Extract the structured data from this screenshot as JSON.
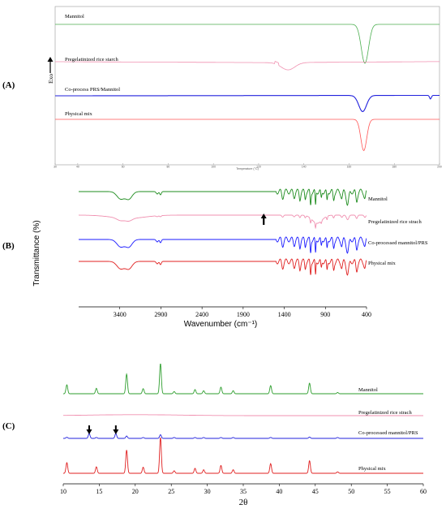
{
  "panels": {
    "a": "(A)",
    "b": "(B)",
    "c": "(C)"
  },
  "chart_data": [
    {
      "id": "A",
      "type": "line",
      "xlabel": "Temperature (°C)",
      "ylabel": "Exo",
      "xlim": [
        30,
        200
      ],
      "xticks": [
        "30",
        "40",
        "60",
        "80",
        "100",
        "120",
        "140",
        "160",
        "180",
        "200"
      ],
      "colors": [
        "#4caf50",
        "#f090b0",
        "#2222dd",
        "#ff5555"
      ],
      "series": [
        {
          "name": "Mannitol",
          "peaks": [
            {
              "x": 167,
              "depth": 1.0,
              "width": 1.6
            }
          ],
          "step": [],
          "label_x": 30
        },
        {
          "name": "Pregelatinized rice starch",
          "peaks": [
            {
              "x": 133,
              "depth": 0.3,
              "width": 3
            }
          ],
          "step": [
            {
              "x": 127,
              "rise": 0.1
            }
          ],
          "label_x": 30
        },
        {
          "name": "Co-process PRS/Mannitol",
          "peaks": [
            {
              "x": 166,
              "depth": 0.9,
              "width": 1.7
            },
            {
              "x": 196,
              "depth": 0.2,
              "width": 0.4
            }
          ],
          "step": [],
          "label_x": 30
        },
        {
          "name": "Physical mix",
          "peaks": [
            {
              "x": 166.5,
              "depth": 1.75,
              "width": 1.3
            }
          ],
          "step": [],
          "label_x": 30
        }
      ]
    },
    {
      "id": "B",
      "type": "line",
      "xlabel": "Wavenumber (cm⁻¹)",
      "ylabel": "Transmittance (%)",
      "xlim": [
        3900,
        400
      ],
      "xticks": [
        "3400",
        "2900",
        "2400",
        "1900",
        "1400",
        "900",
        "400"
      ],
      "colors": [
        "#1e8c1e",
        "#f090b0",
        "#1a1aff",
        "#e02020"
      ],
      "arrow_x": 1650,
      "series": [
        {
          "name": "Mannitol"
        },
        {
          "name": "Pregelatinized rice strach"
        },
        {
          "name": "Co-processed mannitol/PRS"
        },
        {
          "name": "Physical mix"
        }
      ]
    },
    {
      "id": "C",
      "type": "line",
      "xlabel": "2θ",
      "xlim": [
        10,
        60
      ],
      "xticks": [
        "10",
        "15",
        "20",
        "25",
        "30",
        "35",
        "40",
        "45",
        "50",
        "55",
        "60"
      ],
      "colors": [
        "#2e9e2e",
        "#f090b0",
        "#2222dd",
        "#e02020"
      ],
      "arrows_x": [
        13.6,
        17.3
      ],
      "peaks": [
        {
          "x": 10.5,
          "h": 0.3
        },
        {
          "x": 14.6,
          "h": 0.18
        },
        {
          "x": 18.8,
          "h": 0.65
        },
        {
          "x": 21.1,
          "h": 0.17
        },
        {
          "x": 23.5,
          "h": 1.0
        },
        {
          "x": 25.4,
          "h": 0.07
        },
        {
          "x": 28.3,
          "h": 0.14
        },
        {
          "x": 29.5,
          "h": 0.1
        },
        {
          "x": 31.9,
          "h": 0.22
        },
        {
          "x": 33.6,
          "h": 0.1
        },
        {
          "x": 38.8,
          "h": 0.27
        },
        {
          "x": 44.2,
          "h": 0.35
        },
        {
          "x": 48.1,
          "h": 0.04
        }
      ],
      "series": [
        {
          "name": "Mannitol"
        },
        {
          "name": "Pregelatinized rice strach"
        },
        {
          "name": "Co-processed mannitol/PRS"
        },
        {
          "name": "Physical mix"
        }
      ]
    }
  ]
}
